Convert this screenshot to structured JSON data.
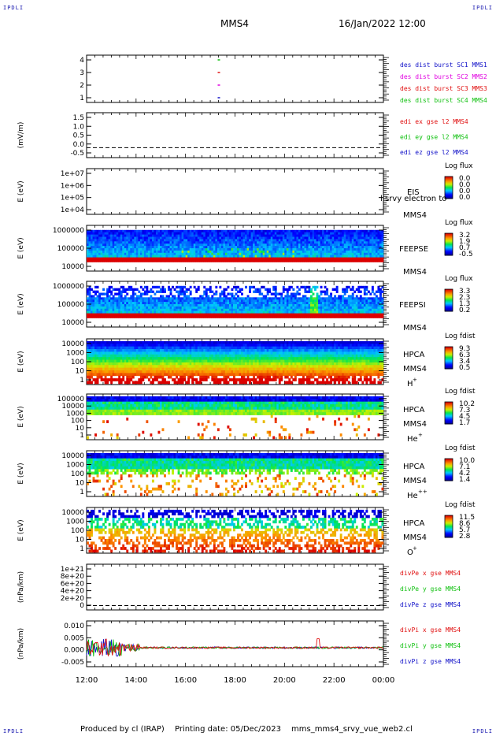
{
  "header": {
    "corner_tl": "IPDLI",
    "corner_tr": "IPDLI",
    "corner_bl": "IPDLI",
    "corner_br": "IPDLI",
    "spacecraft": "MMS4",
    "datetime": "16/Jan/2022 12:00"
  },
  "footer": {
    "produced": "Produced by cl (IRAP)",
    "printing": "Printing date: 05/Dec/2023",
    "file": "mms_mms4_srvy_vue_web2.cl"
  },
  "time_axis": {
    "ticks": [
      "12:00",
      "14:00",
      "16:00",
      "18:00",
      "20:00",
      "22:00",
      "00:00"
    ]
  },
  "colors": {
    "blue": "#1010c8",
    "magenta": "#e000e0",
    "red": "#e01010",
    "green": "#10c010"
  },
  "chart_data": [
    {
      "type": "line",
      "id": "burst",
      "yticks": [
        "4",
        "3",
        "2",
        "1"
      ],
      "ylim": [
        0.5,
        4.5
      ],
      "series": [
        {
          "name": "des dist burst SC1 MMS1",
          "color": "#1010c8",
          "y": 1
        },
        {
          "name": "des dist burst SC2 MMS2",
          "color": "#e000e0",
          "y": 2
        },
        {
          "name": "des dist burst SC3 MMS3",
          "color": "#e01010",
          "y": 3
        },
        {
          "name": "des dist burst SC4 MMS4",
          "color": "#10c010",
          "y": 4
        }
      ],
      "burst_time_hours": 17.3
    },
    {
      "type": "line",
      "id": "edi",
      "ylabel": "(mV/m)",
      "yticks": [
        "1.5",
        "1.0",
        "0.5",
        "0.0",
        "-0.5"
      ],
      "ylim": [
        -0.5,
        1.75
      ],
      "series": [
        {
          "name": "edi ex gse l2 MMS4",
          "color": "#e01010"
        },
        {
          "name": "edi ey gse l2 MMS4",
          "color": "#10c010"
        },
        {
          "name": "edi ez gse l2 MMS4",
          "color": "#1010c8"
        }
      ],
      "zero_line": 0.0
    },
    {
      "type": "heatmap",
      "id": "eis",
      "ylabel": "E (eV)",
      "yticks": [
        "1e+07",
        "1e+06",
        "1e+05",
        "1e+04"
      ],
      "instrument": "EIS",
      "sc": "MMS4",
      "overlay_text": "l srvy electron to",
      "cbar_title": "Log flux",
      "cbar_ticks": [
        "0.0",
        "0.0",
        "0.0",
        "0.0"
      ],
      "empty": true
    },
    {
      "type": "heatmap",
      "id": "feepse",
      "ylabel": "E (eV)",
      "yticks": [
        "1000000",
        "100000",
        "10000"
      ],
      "instrument": "FEEPSE",
      "sc": "MMS4",
      "cbar_title": "Log flux",
      "cbar_ticks": [
        "3.2",
        "1.9",
        "0.7",
        "-0.5"
      ]
    },
    {
      "type": "heatmap",
      "id": "feepsi",
      "ylabel": "E (eV)",
      "yticks": [
        "1000000",
        "100000",
        "10000"
      ],
      "instrument": "FEEPSI",
      "sc": "MMS4",
      "cbar_title": "Log flux",
      "cbar_ticks": [
        "3.3",
        "2.3",
        "1.3",
        "0.2"
      ]
    },
    {
      "type": "heatmap",
      "id": "hpca_h",
      "ylabel": "E (eV)",
      "yticks": [
        "10000",
        "1000",
        "100",
        "10",
        "1"
      ],
      "instrument": "HPCA",
      "sc": "MMS4",
      "species": "H",
      "species_sup": "+",
      "cbar_title": "Log fdist",
      "cbar_ticks": [
        "9.3",
        "6.3",
        "3.4",
        "0.5"
      ]
    },
    {
      "type": "heatmap",
      "id": "hpca_he",
      "ylabel": "E (eV)",
      "yticks": [
        "100000",
        "10000",
        "1000",
        "100",
        "10",
        "1"
      ],
      "instrument": "HPCA",
      "sc": "MMS4",
      "species": "He",
      "species_sup": "+",
      "cbar_title": "Log fdist",
      "cbar_ticks": [
        "10.2",
        "7.3",
        "4.5",
        "1.7"
      ]
    },
    {
      "type": "heatmap",
      "id": "hpca_hepp",
      "ylabel": "E (eV)",
      "yticks": [
        "10000",
        "1000",
        "100",
        "10",
        "1"
      ],
      "instrument": "HPCA",
      "sc": "MMS4",
      "species": "He",
      "species_sup": "++",
      "cbar_title": "Log fdist",
      "cbar_ticks": [
        "10.0",
        "7.1",
        "4.2",
        "1.4"
      ]
    },
    {
      "type": "heatmap",
      "id": "hpca_o",
      "ylabel": "E (eV)",
      "yticks": [
        "10000",
        "1000",
        "100",
        "10",
        "1"
      ],
      "instrument": "HPCA",
      "sc": "MMS4",
      "species": "O",
      "species_sup": "+",
      "cbar_title": "Log fdist",
      "cbar_ticks": [
        "11.5",
        "8.6",
        "5.7",
        "2.8"
      ]
    },
    {
      "type": "line",
      "id": "divpe",
      "ylabel": "(nPa/km)",
      "yticks": [
        "1e+21",
        "8e+20",
        "6e+20",
        "4e+20",
        "2e+20",
        "0"
      ],
      "ylim": [
        0,
        1e+21
      ],
      "series": [
        {
          "name": "divPe x gse MMS4",
          "color": "#e01010"
        },
        {
          "name": "divPe y gse MMS4",
          "color": "#10c010"
        },
        {
          "name": "divPe z gse MMS4",
          "color": "#1010c8"
        }
      ],
      "zero_line": 0
    },
    {
      "type": "line",
      "id": "divpi",
      "ylabel": "(nPa/km)",
      "yticks": [
        "0.010",
        "0.005",
        "0.000",
        "-0.005"
      ],
      "ylim": [
        -0.0085,
        0.012
      ],
      "series": [
        {
          "name": "divPi x gse MMS4",
          "color": "#e01010"
        },
        {
          "name": "divPi y gse MMS4",
          "color": "#10c010"
        },
        {
          "name": "divPi z gse MMS4",
          "color": "#1010c8"
        }
      ]
    }
  ]
}
